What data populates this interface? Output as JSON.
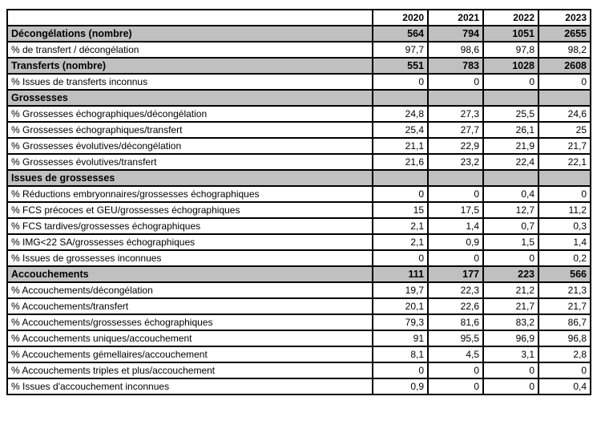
{
  "chart_data": {
    "type": "table",
    "title": "",
    "columns": [
      "",
      "2020",
      "2021",
      "2022",
      "2023"
    ],
    "colors": {
      "section_row_background": "#c0c0c0",
      "border": "#000000",
      "background": "#ffffff",
      "text": "#000000"
    },
    "rows": [
      {
        "type": "section",
        "label": "Décongélations (nombre)",
        "values": [
          "564",
          "794",
          "1051",
          "2655"
        ]
      },
      {
        "type": "data",
        "label": "% de transfert / décongélation",
        "values": [
          "97,7",
          "98,6",
          "97,8",
          "98,2"
        ]
      },
      {
        "type": "section",
        "label": "Transferts (nombre)",
        "values": [
          "551",
          "783",
          "1028",
          "2608"
        ]
      },
      {
        "type": "data",
        "label": "% Issues de transferts inconnus",
        "values": [
          "0",
          "0",
          "0",
          "0"
        ]
      },
      {
        "type": "section",
        "label": "Grossesses",
        "values": [
          "",
          "",
          "",
          ""
        ]
      },
      {
        "type": "data",
        "label": "% Grossesses échographiques/décongélation",
        "values": [
          "24,8",
          "27,3",
          "25,5",
          "24,6"
        ]
      },
      {
        "type": "data",
        "label": "% Grossesses échographiques/transfert",
        "values": [
          "25,4",
          "27,7",
          "26,1",
          "25"
        ]
      },
      {
        "type": "data",
        "label": "% Grossesses évolutives/décongélation",
        "values": [
          "21,1",
          "22,9",
          "21,9",
          "21,7"
        ]
      },
      {
        "type": "data",
        "label": "% Grossesses évolutives/transfert",
        "values": [
          "21,6",
          "23,2",
          "22,4",
          "22,1"
        ]
      },
      {
        "type": "section",
        "label": "Issues de grossesses",
        "values": [
          "",
          "",
          "",
          ""
        ]
      },
      {
        "type": "data",
        "label": "% Réductions embryonnaires/grossesses échographiques",
        "values": [
          "0",
          "0",
          "0,4",
          "0"
        ]
      },
      {
        "type": "data",
        "label": "% FCS précoces et GEU/grossesses échographiques",
        "values": [
          "15",
          "17,5",
          "12,7",
          "11,2"
        ]
      },
      {
        "type": "data",
        "label": "% FCS tardives/grossesses échographiques",
        "values": [
          "2,1",
          "1,4",
          "0,7",
          "0,3"
        ]
      },
      {
        "type": "data",
        "label": "% IMG<22 SA/grossesses échographiques",
        "values": [
          "2,1",
          "0,9",
          "1,5",
          "1,4"
        ]
      },
      {
        "type": "data",
        "label": "% Issues de grossesses inconnues",
        "values": [
          "0",
          "0",
          "0",
          "0,2"
        ]
      },
      {
        "type": "section",
        "label": "Accouchements",
        "values": [
          "111",
          "177",
          "223",
          "566"
        ]
      },
      {
        "type": "data",
        "label": "% Accouchements/décongélation",
        "values": [
          "19,7",
          "22,3",
          "21,2",
          "21,3"
        ]
      },
      {
        "type": "data",
        "label": "% Accouchements/transfert",
        "values": [
          "20,1",
          "22,6",
          "21,7",
          "21,7"
        ]
      },
      {
        "type": "data",
        "label": "% Accouchements/grossesses échographiques",
        "values": [
          "79,3",
          "81,6",
          "83,2",
          "86,7"
        ]
      },
      {
        "type": "data",
        "label": "% Accouchements uniques/accouchement",
        "values": [
          "91",
          "95,5",
          "96,9",
          "96,8"
        ]
      },
      {
        "type": "data",
        "label": "% Accouchements gémellaires/accouchement",
        "values": [
          "8,1",
          "4,5",
          "3,1",
          "2,8"
        ]
      },
      {
        "type": "data",
        "label": "% Accouchements triples et plus/accouchement",
        "values": [
          "0",
          "0",
          "0",
          "0"
        ]
      },
      {
        "type": "data",
        "label": "% Issues d'accouchement inconnues",
        "values": [
          "0,9",
          "0",
          "0",
          "0,4"
        ]
      }
    ]
  }
}
